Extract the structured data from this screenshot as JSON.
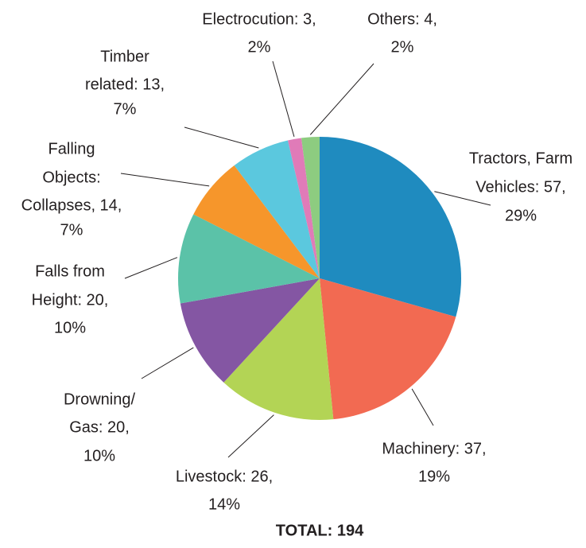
{
  "chart_data": {
    "type": "pie",
    "labels": [
      [
        "Tractors, Farm",
        "Vehicles: 57,",
        "29%"
      ],
      [
        "Machinery: 37,",
        "19%"
      ],
      [
        "Livestock: 26,",
        "14%"
      ],
      [
        "Drowning/",
        "Gas: 20,",
        "10%"
      ],
      [
        "Falls from",
        "Height: 20,",
        "10%"
      ],
      [
        "Falling",
        "Objects:",
        "Collapses, 14,",
        "7%"
      ],
      [
        "Timber",
        "related: 13,",
        "7%"
      ],
      [
        "Electrocution: 3,",
        "2%"
      ],
      [
        "Others: 4,",
        "2%"
      ]
    ],
    "values": [
      57,
      37,
      26,
      20,
      20,
      14,
      13,
      3,
      4
    ],
    "colors": [
      "#1f8bbf",
      "#f26a52",
      "#b3d455",
      "#8456a3",
      "#5bc2a8",
      "#f6962b",
      "#5bc8de",
      "#e07bb8",
      "#8dcc80"
    ],
    "annotation": "TOTAL: 194"
  }
}
